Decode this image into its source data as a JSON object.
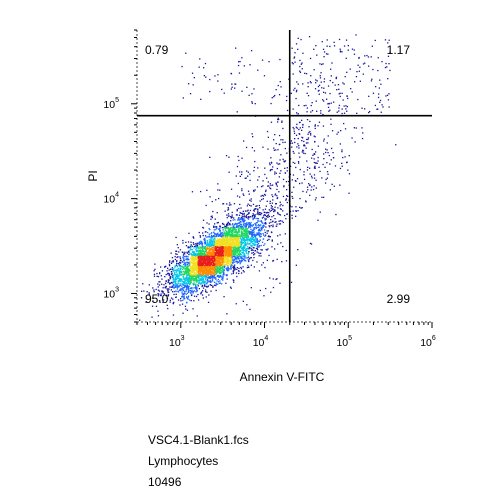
{
  "chart_data": {
    "type": "scatter",
    "subtype": "flow-cytometry-density-dot-plot",
    "xlabel": "Annexin V-FITC",
    "ylabel": "PI",
    "x_scale": "log",
    "y_scale": "log",
    "xlim": [
      300,
      1000000
    ],
    "ylim": [
      500,
      600000
    ],
    "x_ticks": [
      1000,
      10000,
      100000,
      1000000
    ],
    "x_tick_labels": [
      {
        "base": "10",
        "exp": "3"
      },
      {
        "base": "10",
        "exp": "4"
      },
      {
        "base": "10",
        "exp": "5"
      },
      {
        "base": "10",
        "exp": "6"
      }
    ],
    "y_ticks": [
      1000,
      10000,
      100000
    ],
    "y_tick_labels": [
      {
        "base": "10",
        "exp": "3"
      },
      {
        "base": "10",
        "exp": "4"
      },
      {
        "base": "10",
        "exp": "5"
      }
    ],
    "gates": {
      "x": 20000,
      "y": 75000
    },
    "quadrants": [
      {
        "position": "top-left",
        "value": "0.79"
      },
      {
        "position": "top-right",
        "value": "1.17"
      },
      {
        "position": "bottom-left",
        "value": "95.0"
      },
      {
        "position": "bottom-right",
        "value": "2.99"
      }
    ],
    "population": {
      "main_cluster_center": [
        2500,
        2500
      ],
      "main_cluster_spread_decades": 0.32,
      "total_events": 10496
    },
    "color_scale": [
      "#1515a0",
      "#1a66ff",
      "#00c8e6",
      "#1ed760",
      "#f0e020",
      "#ff8c00",
      "#e81e1e"
    ],
    "grid": false,
    "legend": "none"
  },
  "sample": {
    "file_name": "VSC4.1-Blank1.fcs",
    "gate_name": "Lymphocytes",
    "event_count": "10496"
  }
}
